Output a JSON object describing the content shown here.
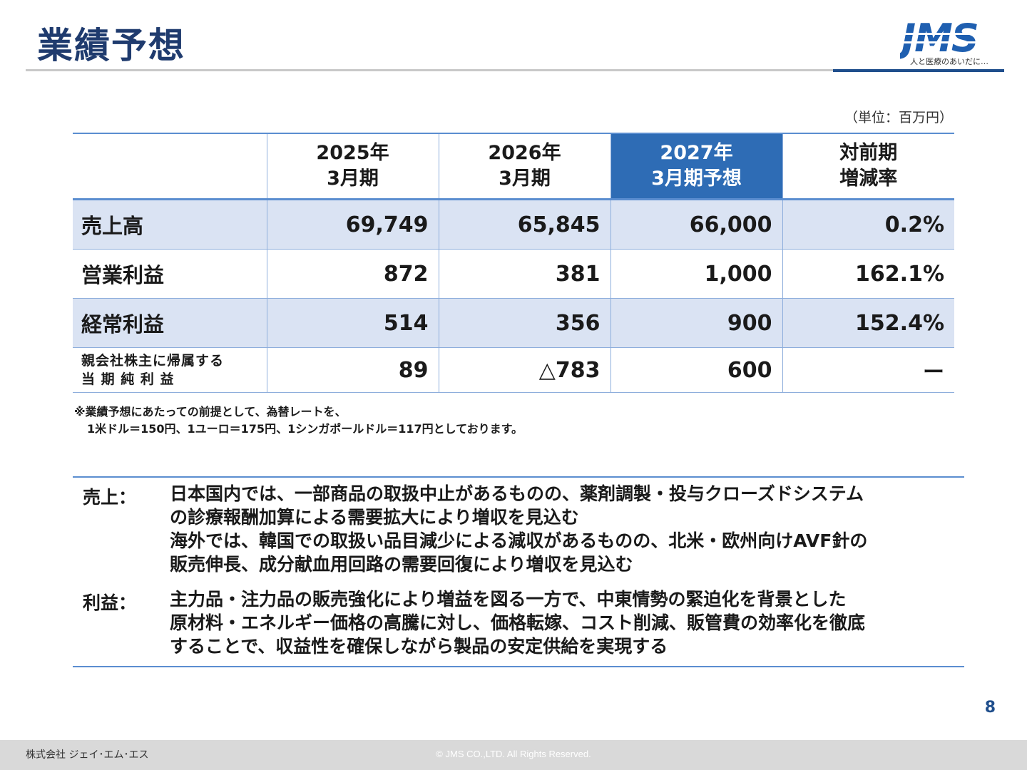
{
  "header": {
    "title": "業績予想",
    "logo_text": "JMS",
    "logo_tagline": "人と医療のあいだに…"
  },
  "unit_note": "（単位：百万円）",
  "table": {
    "columns": [
      {
        "line1": "",
        "line2": ""
      },
      {
        "line1": "2025年",
        "line2": "3月期"
      },
      {
        "line1": "2026年",
        "line2": "3月期"
      },
      {
        "line1": "2027年",
        "line2": "3月期予想"
      },
      {
        "line1": "対前期",
        "line2": "増減率"
      }
    ],
    "rows": [
      {
        "label": "売上高",
        "values": [
          "69,749",
          "65,845",
          "66,000",
          "0.2%"
        ]
      },
      {
        "label": "営業利益",
        "values": [
          "872",
          "381",
          "1,000",
          "162.1%"
        ]
      },
      {
        "label": "経常利益",
        "values": [
          "514",
          "356",
          "900",
          "152.4%"
        ]
      },
      {
        "label_line1": "親会社株主に帰属する",
        "label_line2": "当 期 純 利 益",
        "values": [
          "89",
          "△783",
          "600",
          "ー"
        ]
      }
    ],
    "highlight_color": "#2e6cb5",
    "band_color": "#dae3f3"
  },
  "note": {
    "line1": "※業績予想にあたっての前提として、為替レートを、",
    "line2": "1米ドル＝150円、1ユーロ＝175円、1シンガポールドル＝117円としております。"
  },
  "commentary": {
    "sales": {
      "label": "売上：",
      "lines": [
        "日本国内では、一部商品の取扱中止があるものの、薬剤調製・投与クローズドシステム",
        "の診療報酬加算による需要拡大により増収を見込む",
        "海外では、韓国での取扱い品目減少による減収があるものの、北米・欧州向けAVF針の",
        "販売伸長、成分献血用回路の需要回復により増収を見込む"
      ]
    },
    "profit": {
      "label": "利益：",
      "lines": [
        "主力品・注力品の販売強化により増益を図る一方で、中東情勢の緊迫化を背景とした",
        "原材料・エネルギー価格の高騰に対し、価格転嫁、コスト削減、販管費の効率化を徹底",
        "することで、収益性を確保しながら製品の安定供給を実現する"
      ]
    }
  },
  "page_number": "8",
  "footer": {
    "company": "株式会社 ジェイ･エム･エス",
    "copyright": "© JMS CO.,LTD.  All Rights Reserved."
  }
}
